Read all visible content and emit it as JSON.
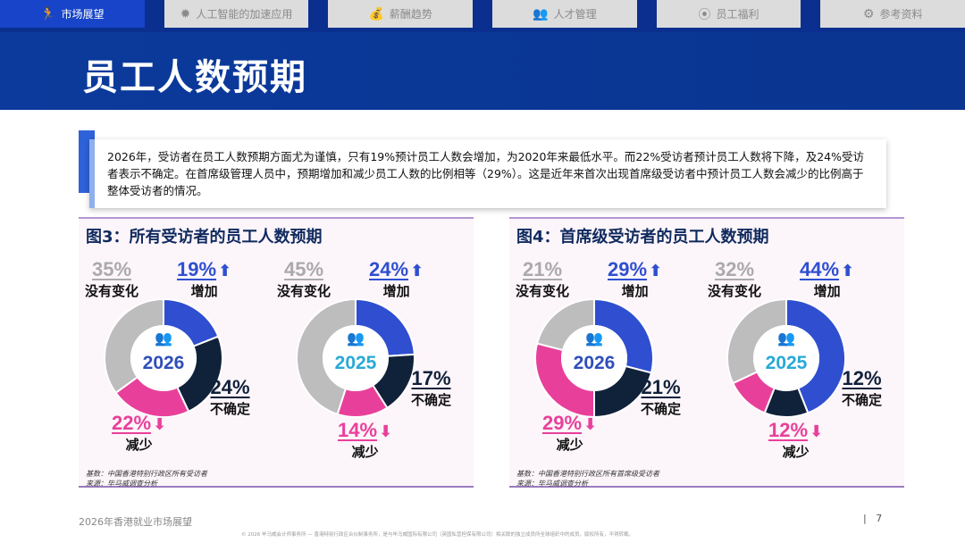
{
  "nav": {
    "tabs": [
      {
        "label": "市场展望",
        "icon": "running-person-icon",
        "active": true
      },
      {
        "label": "人工智能的加速应用",
        "icon": "ai-chip-icon"
      },
      {
        "label": "薪酬趋势",
        "icon": "salary-hand-icon"
      },
      {
        "label": "人才管理",
        "icon": "people-group-icon"
      },
      {
        "label": "员工福利",
        "icon": "location-pin-icon"
      },
      {
        "label": "参考资料",
        "icon": "gear-search-icon"
      }
    ]
  },
  "page_title": "员工人数预期",
  "description": "2026年，受访者在员工人数预期方面尤为谨慎，只有19%预计员工人数会增加，为2020年来最低水平。而22%受访者预计员工人数将下降，及24%受访者表示不确定。在首席级管理人员中，预期增加和减少员工人数的比例相等（29%）。这是近年来首次出现首席级受访者中预计员工人数会减少的比例高于整体受访者的情况。",
  "colors": {
    "increase": "#2f4fd0",
    "uncertain": "#10213a",
    "decrease": "#e8409a",
    "no_change": "#bdbdbd",
    "year2026": "#2f4fb8",
    "year2025": "#29a9d6"
  },
  "categories": {
    "increase": "增加",
    "uncertain": "不确定",
    "decrease": "减少",
    "no_change": "没有变化"
  },
  "chart_data": [
    {
      "type": "pie",
      "title": "图3：所有受访者的员工人数预期",
      "donuts": [
        {
          "year": "2026",
          "increase": "19%",
          "uncertain": "24%",
          "decrease": "22%",
          "no_change": "35%"
        },
        {
          "year": "2025",
          "increase": "24%",
          "uncertain": "17%",
          "decrease": "14%",
          "no_change": "45%"
        }
      ],
      "base": "基数：中国香港特别行政区所有受访者",
      "source": "来源：毕马威调查分析"
    },
    {
      "type": "pie",
      "title": "图4：首席级受访者的员工人数预期",
      "donuts": [
        {
          "year": "2026",
          "increase": "29%",
          "uncertain": "21%",
          "decrease": "29%",
          "no_change": "21%"
        },
        {
          "year": "2025",
          "increase": "44%",
          "uncertain": "12%",
          "decrease": "12%",
          "no_change": "32%"
        }
      ],
      "base": "基数：中国香港特别行政区所有首席级受访者",
      "source": "来源：毕马威调查分析"
    }
  ],
  "footer": {
    "report": "2026年香港就业市场展望",
    "page": "7",
    "copyright": "© 2026 毕马威会计师事务所 — 香港特别行政区合伙制事务所，是与毕马威国际有限公司（英国私营担保有限公司）相关联的独立成员所全球组织中的成员。版权所有，不得转载。"
  }
}
